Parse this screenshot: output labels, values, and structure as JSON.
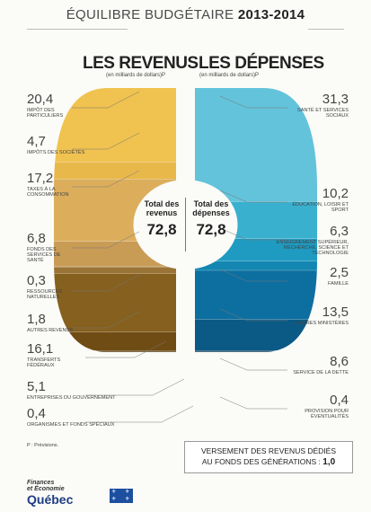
{
  "header": {
    "title_prefix": "ÉQUILIBRE BUDGÉTAIRE",
    "title_years": "2013-2014"
  },
  "revenus": {
    "heading": "LES REVENUS",
    "unit": "(en milliards de dollars)P"
  },
  "depenses": {
    "heading": "LES DÉPENSES",
    "unit": "(en milliards de dollars)P"
  },
  "center": {
    "revenus_label_1": "Total des",
    "revenus_label_2": "revenus",
    "revenus_total": "72,8",
    "depenses_label_1": "Total des",
    "depenses_label_2": "dépenses",
    "depenses_total": "72,8"
  },
  "chart_data": {
    "type": "pie",
    "charts": [
      {
        "name": "Les revenus",
        "total": 72.8,
        "categories": [
          "Impôt des particuliers",
          "Impôts des sociétés",
          "Taxes à la consommation",
          "Fonds des services de santé",
          "Ressources naturelles",
          "Autres revenus",
          "Transferts fédéraux",
          "Entreprises du gouvernement",
          "Organismes et fonds spéciaux"
        ],
        "values": [
          20.4,
          4.7,
          17.2,
          6.8,
          0.3,
          1.8,
          16.1,
          5.1,
          0.4
        ],
        "colors": [
          "#f0c24f",
          "#e9b84a",
          "#dcae5c",
          "#c99c56",
          "#b98e4b",
          "#9a7436",
          "#86601f",
          "#6f4c14",
          "#5b3c0c"
        ]
      },
      {
        "name": "Les dépenses",
        "total": 72.8,
        "categories": [
          "Santé et services sociaux",
          "Éducation, loisir et sport",
          "Enseignement supérieur, recherche, science et technologie",
          "Famille",
          "Autres ministères",
          "Service de la dette",
          "Provision pour éventualités"
        ],
        "values": [
          31.3,
          10.2,
          6.3,
          2.5,
          13.5,
          8.6,
          0.4
        ],
        "colors": [
          "#63c3da",
          "#3ab0cf",
          "#1f9ac0",
          "#1386b1",
          "#0d6fa0",
          "#0a5a85",
          "#083f63"
        ]
      }
    ]
  },
  "left_labels": [
    {
      "value": "20,4",
      "text": "Impôt des particuliers"
    },
    {
      "value": "4,7",
      "text": "Impôts des sociétés"
    },
    {
      "value": "17,2",
      "text": "Taxes à la consommation"
    },
    {
      "value": "6,8",
      "text": "Fonds des services de santé"
    },
    {
      "value": "0,3",
      "text": "Ressources naturelles"
    },
    {
      "value": "1,8",
      "text": "Autres revenus"
    },
    {
      "value": "16,1",
      "text": "Transferts fédéraux"
    },
    {
      "value": "5,1",
      "text": "Entreprises du gouvernement"
    },
    {
      "value": "0,4",
      "text": "Organismes et fonds spéciaux"
    }
  ],
  "right_labels": [
    {
      "value": "31,3",
      "text": "Santé et services sociaux"
    },
    {
      "value": "10,2",
      "text": "Éducation, loisir et sport"
    },
    {
      "value": "6,3",
      "text": "Enseignement supérieur, recherche, science et technologie"
    },
    {
      "value": "2,5",
      "text": "Famille"
    },
    {
      "value": "13,5",
      "text": "Autres ministères"
    },
    {
      "value": "8,6",
      "text": "Service de la dette"
    },
    {
      "value": "0,4",
      "text": "Provision pour éventualités"
    }
  ],
  "footnote": "P : Prévisions.",
  "box": {
    "line1": "VERSEMENT DES REVENUS DÉDIÉS",
    "line2": "AU FONDS DES GÉNÉRATIONS : ",
    "value": "1,0"
  },
  "logo": {
    "line1": "Finances",
    "line2": "et Économie",
    "line3": "Québec"
  }
}
